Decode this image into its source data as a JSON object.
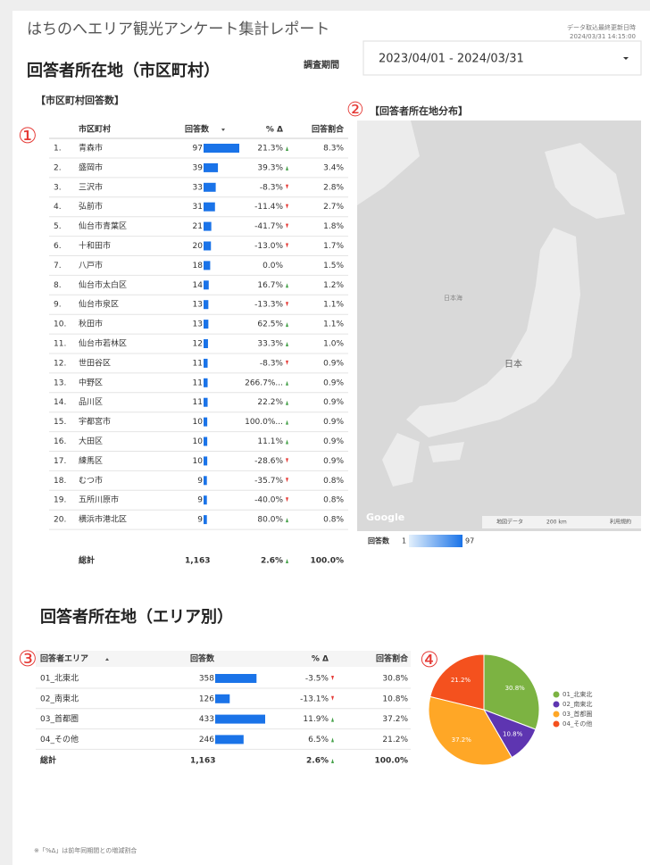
{
  "header": {
    "title": "はちのへエリア観光アンケート集計レポート",
    "update_label": "データ取込最終更新日時",
    "update_time": "2024/03/31 14:15:00",
    "period_label": "調査期間",
    "period": "2023/04/01 - 2024/03/31"
  },
  "markers": [
    "①",
    "②",
    "③",
    "④"
  ],
  "section1": {
    "title": "回答者所在地（市区町村）",
    "table_title": "【市区町村回答数】",
    "map_title": "【回答者所在地分布】",
    "columns": [
      "市区町村",
      "回答数",
      "% Δ",
      "回答割合"
    ],
    "rows": [
      {
        "rank": "1.",
        "name": "青森市",
        "count": 97,
        "delta": "21.3%",
        "share": "8.3%"
      },
      {
        "rank": "2.",
        "name": "盛岡市",
        "count": 39,
        "delta": "39.3%",
        "share": "3.4%"
      },
      {
        "rank": "3.",
        "name": "三沢市",
        "count": 33,
        "delta": "-8.3%",
        "share": "2.8%"
      },
      {
        "rank": "4.",
        "name": "弘前市",
        "count": 31,
        "delta": "-11.4%",
        "share": "2.7%"
      },
      {
        "rank": "5.",
        "name": "仙台市青葉区",
        "count": 21,
        "delta": "-41.7%",
        "share": "1.8%"
      },
      {
        "rank": "6.",
        "name": "十和田市",
        "count": 20,
        "delta": "-13.0%",
        "share": "1.7%"
      },
      {
        "rank": "7.",
        "name": "八戸市",
        "count": 18,
        "delta": "0.0%",
        "share": "1.5%"
      },
      {
        "rank": "8.",
        "name": "仙台市太白区",
        "count": 14,
        "delta": "16.7%",
        "share": "1.2%"
      },
      {
        "rank": "9.",
        "name": "仙台市泉区",
        "count": 13,
        "delta": "-13.3%",
        "share": "1.1%"
      },
      {
        "rank": "10.",
        "name": "秋田市",
        "count": 13,
        "delta": "62.5%",
        "share": "1.1%"
      },
      {
        "rank": "11.",
        "name": "仙台市若林区",
        "count": 12,
        "delta": "33.3%",
        "share": "1.0%"
      },
      {
        "rank": "12.",
        "name": "世田谷区",
        "count": 11,
        "delta": "-8.3%",
        "share": "0.9%"
      },
      {
        "rank": "13.",
        "name": "中野区",
        "count": 11,
        "delta": "266.7%...",
        "share": "0.9%"
      },
      {
        "rank": "14.",
        "name": "品川区",
        "count": 11,
        "delta": "22.2%",
        "share": "0.9%"
      },
      {
        "rank": "15.",
        "name": "宇都宮市",
        "count": 10,
        "delta": "100.0%...",
        "share": "0.9%"
      },
      {
        "rank": "16.",
        "name": "大田区",
        "count": 10,
        "delta": "11.1%",
        "share": "0.9%"
      },
      {
        "rank": "17.",
        "name": "練馬区",
        "count": 10,
        "delta": "-28.6%",
        "share": "0.9%"
      },
      {
        "rank": "18.",
        "name": "むつ市",
        "count": 9,
        "delta": "-35.7%",
        "share": "0.8%"
      },
      {
        "rank": "19.",
        "name": "五所川原市",
        "count": 9,
        "delta": "-40.0%",
        "share": "0.8%"
      },
      {
        "rank": "20.",
        "name": "横浜市港北区",
        "count": 9,
        "delta": "80.0%",
        "share": "0.8%"
      }
    ],
    "total": {
      "name": "総計",
      "count": "1,163",
      "delta": "2.6%",
      "share": "100.0%"
    },
    "map": {
      "labels": [
        "日本海",
        "日本"
      ],
      "google": "Google",
      "credits": [
        "地図データ",
        "200 km",
        "利用規約"
      ],
      "legend_title": "回答数",
      "legend_min": "1",
      "legend_max": "97"
    }
  },
  "section2": {
    "title": "回答者所在地（エリア別）",
    "columns": [
      "回答者エリア",
      "回答数",
      "% Δ",
      "回答割合"
    ],
    "rows": [
      {
        "name": "01_北東北",
        "count": 358,
        "delta": "-3.5%",
        "share": "30.8%"
      },
      {
        "name": "02_南東北",
        "count": 126,
        "delta": "-13.1%",
        "share": "10.8%"
      },
      {
        "name": "03_首都圏",
        "count": 433,
        "delta": "11.9%",
        "share": "37.2%"
      },
      {
        "name": "04_その他",
        "count": 246,
        "delta": "6.5%",
        "share": "21.2%"
      }
    ],
    "total": {
      "name": "総計",
      "count": "1,163",
      "delta": "2.6%",
      "share": "100.0%"
    }
  },
  "pie": {
    "type": "pie",
    "categories": [
      "01_北東北",
      "02_南東北",
      "03_首都圏",
      "04_その他"
    ],
    "values": [
      30.8,
      10.8,
      37.2,
      21.2
    ],
    "value_labels": [
      "30.8%",
      "10.8%",
      "37.2%",
      "21.2%"
    ],
    "colors": [
      "#7cb342",
      "#5e35b1",
      "#ffa726",
      "#f4511e"
    ]
  },
  "footer": "※「%Δ」は前年同期間との増減割合"
}
